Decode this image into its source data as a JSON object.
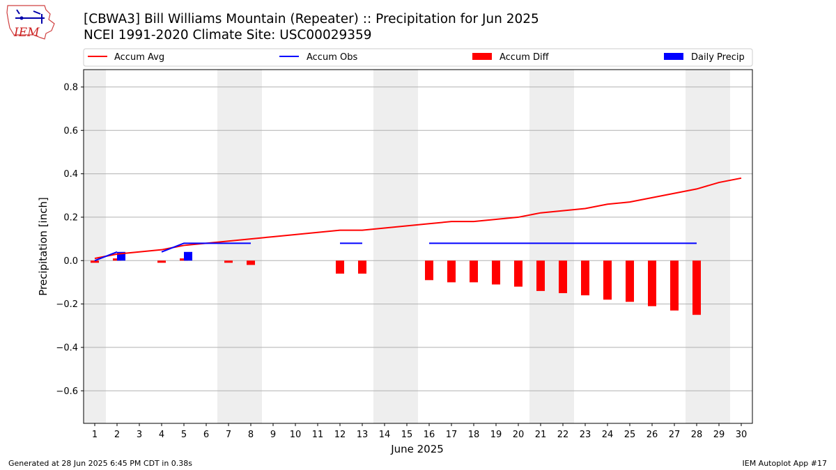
{
  "header": {
    "logo_text": "IEM",
    "title": "[CBWA3] Bill Williams Mountain (Repeater) :: Precipitation for Jun 2025",
    "subtitle": "NCEI 1991-2020 Climate Site: USC00029359"
  },
  "footer": {
    "left": "Generated at 28 Jun 2025 6:45 PM CDT in 0.38s",
    "right": "IEM Autoplot App #17"
  },
  "colors": {
    "avg": "#ff0000",
    "obs": "#0000ff",
    "diff": "#ff0000",
    "daily": "#0000ff",
    "weekend_shade": "#eeeeee",
    "grid": "#b0b0b0"
  },
  "chart_data": {
    "type": "bar",
    "xlabel": "June 2025",
    "ylabel": "Precipitation [inch]",
    "xlim": [
      0.5,
      30.5
    ],
    "ylim": [
      -0.75,
      0.88
    ],
    "x_ticks": [
      1,
      2,
      3,
      4,
      5,
      6,
      7,
      8,
      9,
      10,
      11,
      12,
      13,
      14,
      15,
      16,
      17,
      18,
      19,
      20,
      21,
      22,
      23,
      24,
      25,
      26,
      27,
      28,
      29,
      30
    ],
    "y_ticks": [
      -0.6,
      -0.4,
      -0.2,
      0.0,
      0.2,
      0.4,
      0.6,
      0.8
    ],
    "y_tick_labels": [
      "−0.6",
      "−0.4",
      "−0.2",
      "0.0",
      "0.2",
      "0.4",
      "0.6",
      "0.8"
    ],
    "grid": "horizontal",
    "legend_placement": "top",
    "weekend_spans": [
      [
        0.5,
        1.5
      ],
      [
        6.5,
        8.5
      ],
      [
        13.5,
        15.5
      ],
      [
        20.5,
        22.5
      ],
      [
        27.5,
        29.5
      ]
    ],
    "series": [
      {
        "name": "Accum Avg",
        "kind": "line",
        "x": [
          1,
          2,
          3,
          4,
          5,
          6,
          7,
          8,
          9,
          10,
          11,
          12,
          13,
          14,
          15,
          16,
          17,
          18,
          19,
          20,
          21,
          22,
          23,
          24,
          25,
          26,
          27,
          28,
          29,
          30
        ],
        "values": [
          0.01,
          0.03,
          0.04,
          0.05,
          0.07,
          0.08,
          0.09,
          0.1,
          0.11,
          0.12,
          0.13,
          0.14,
          0.14,
          0.15,
          0.16,
          0.17,
          0.18,
          0.18,
          0.19,
          0.2,
          0.22,
          0.23,
          0.24,
          0.26,
          0.27,
          0.29,
          0.31,
          0.33,
          0.36,
          0.38
        ]
      },
      {
        "name": "Accum Obs",
        "kind": "segments",
        "segments": [
          {
            "x": [
              1,
              2
            ],
            "values": [
              0.0,
              0.04
            ]
          },
          {
            "x": [
              4,
              5,
              6,
              7,
              8
            ],
            "values": [
              0.04,
              0.08,
              0.08,
              0.08,
              0.08
            ]
          },
          {
            "x": [
              12,
              13
            ],
            "values": [
              0.08,
              0.08
            ]
          },
          {
            "x": [
              16,
              17,
              18,
              19,
              20,
              21,
              22,
              23,
              24,
              25,
              26,
              27,
              28
            ],
            "values": [
              0.08,
              0.08,
              0.08,
              0.08,
              0.08,
              0.08,
              0.08,
              0.08,
              0.08,
              0.08,
              0.08,
              0.08,
              0.08
            ]
          }
        ]
      },
      {
        "name": "Accum Diff",
        "kind": "bar",
        "x": [
          1,
          2,
          4,
          5,
          7,
          8,
          12,
          13,
          16,
          17,
          18,
          19,
          20,
          21,
          22,
          23,
          24,
          25,
          26,
          27,
          28
        ],
        "values": [
          -0.01,
          0.01,
          -0.01,
          0.01,
          -0.01,
          -0.02,
          -0.06,
          -0.06,
          -0.09,
          -0.1,
          -0.1,
          -0.11,
          -0.12,
          -0.14,
          -0.15,
          -0.16,
          -0.18,
          -0.19,
          -0.21,
          -0.23,
          -0.25
        ]
      },
      {
        "name": "Daily Precip",
        "kind": "bar",
        "x": [
          2,
          5
        ],
        "values": [
          0.04,
          0.04
        ]
      }
    ]
  }
}
